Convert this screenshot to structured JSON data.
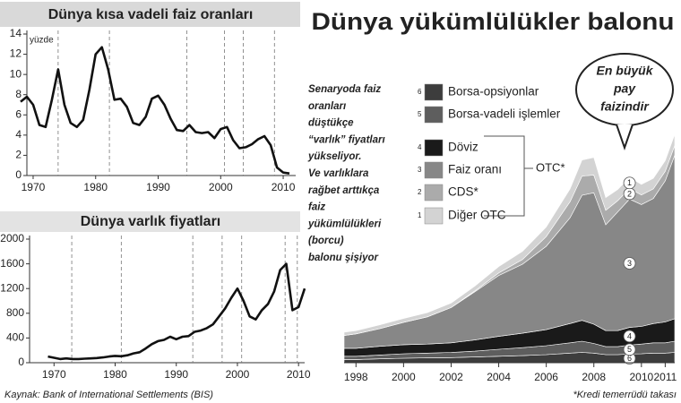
{
  "source": "Kaynak: Bank of International Settlements (BIS)",
  "chart_data": [
    {
      "type": "line",
      "title": "Dünya kısa vadeli faiz oranları",
      "ylabel": "yüzde",
      "x": [
        1968,
        1969,
        1970,
        1971,
        1972,
        1973,
        1974,
        1975,
        1976,
        1977,
        1978,
        1979,
        1980,
        1981,
        1982,
        1983,
        1984,
        1985,
        1986,
        1987,
        1988,
        1989,
        1990,
        1991,
        1992,
        1993,
        1994,
        1995,
        1996,
        1997,
        1998,
        1999,
        2000,
        2001,
        2002,
        2003,
        2004,
        2005,
        2006,
        2007,
        2008,
        2009,
        2010,
        2011
      ],
      "values": [
        7.3,
        7.8,
        7.0,
        5.0,
        4.8,
        7.5,
        10.5,
        7.0,
        5.2,
        4.8,
        5.5,
        8.5,
        12.0,
        12.7,
        10.5,
        7.5,
        7.6,
        6.8,
        5.2,
        5.0,
        5.8,
        7.6,
        7.9,
        7.0,
        5.6,
        4.5,
        4.4,
        5.0,
        4.3,
        4.2,
        4.3,
        3.7,
        4.6,
        4.8,
        3.5,
        2.7,
        2.8,
        3.1,
        3.6,
        3.9,
        3.0,
        0.8,
        0.3,
        0.2
      ],
      "color": "#111111",
      "xlim": [
        1969,
        2012
      ],
      "xticks": [
        1970,
        1980,
        1990,
        2000,
        2010
      ],
      "ylim": [
        0,
        14
      ],
      "yticks": [
        0,
        2,
        4,
        6,
        8,
        10,
        12,
        14
      ],
      "vlines": [
        1974,
        1982.2,
        1994.6,
        2000.6,
        2003.6,
        2008.6
      ]
    },
    {
      "type": "line",
      "title": "Dünya varlık fiyatları",
      "x": [
        1969,
        1970,
        1971,
        1972,
        1973,
        1974,
        1975,
        1976,
        1977,
        1978,
        1979,
        1980,
        1981,
        1982,
        1983,
        1984,
        1985,
        1986,
        1987,
        1988,
        1989,
        1990,
        1991,
        1992,
        1993,
        1994,
        1995,
        1996,
        1997,
        1998,
        1999,
        2000,
        2001,
        2002,
        2003,
        2004,
        2005,
        2006,
        2007,
        2008,
        2009,
        2010,
        2011
      ],
      "values": [
        100,
        80,
        60,
        70,
        60,
        60,
        65,
        70,
        75,
        85,
        100,
        110,
        105,
        120,
        150,
        170,
        230,
        300,
        350,
        370,
        420,
        380,
        420,
        430,
        500,
        520,
        560,
        620,
        750,
        880,
        1050,
        1200,
        1000,
        750,
        700,
        850,
        950,
        1150,
        1500,
        1600,
        850,
        900,
        1200
      ],
      "color": "#111111",
      "xlim": [
        1966,
        2011
      ],
      "xticks": [
        1970,
        1980,
        1990,
        2000,
        2010
      ],
      "ylim": [
        0,
        2000
      ],
      "yticks": [
        0,
        400,
        800,
        1200,
        1600,
        2000
      ],
      "vlines": [
        1972.9,
        1981,
        1992.7,
        1997.5,
        2000.7,
        2007.8,
        2009.8
      ]
    },
    {
      "type": "area",
      "title": "Dünya yükümlülükler balonu",
      "annotation": [
        "Senaryoda faiz",
        "oranları",
        "düştükçe",
        "“varlık” fiyatları",
        "yükseliyor.",
        "Ve varlıklara",
        "rağbet arttıkça",
        "faiz",
        "yükümlülükleri",
        "(borcu)",
        "balonu şişiyor"
      ],
      "callout": [
        "En büyük",
        "pay",
        "faizindir"
      ],
      "group_label": "OTC*",
      "footnote": "*Kredi temerrüdü takası",
      "x": [
        1997.5,
        1998,
        1999,
        2000,
        2001,
        2002,
        2003,
        2004,
        2005,
        2006,
        2007,
        2007.5,
        2008,
        2008.5,
        2009,
        2009.5,
        2010,
        2010.5,
        2011,
        2011.4
      ],
      "xlim": [
        1997.5,
        2011.4
      ],
      "xticks": [
        1998,
        2000,
        2002,
        2004,
        2006,
        2008,
        2010,
        2011
      ],
      "series": [
        {
          "name": "Borsa-opsiyonlar",
          "key": "6",
          "color": "#3d3d3d",
          "values": [
            10,
            10,
            12,
            14,
            15,
            16,
            18,
            20,
            22,
            25,
            30,
            32,
            30,
            25,
            25,
            27,
            28,
            30,
            30,
            32
          ]
        },
        {
          "name": "Borsa-vadeli işlemler",
          "key": "5",
          "color": "#5e5e5e",
          "values": [
            10,
            10,
            12,
            14,
            15,
            16,
            18,
            22,
            25,
            28,
            32,
            35,
            30,
            25,
            25,
            28,
            30,
            32,
            32,
            35
          ]
        },
        {
          "name": "Döviz",
          "key": "4",
          "color": "#1a1a1a",
          "values": [
            25,
            25,
            27,
            28,
            28,
            30,
            35,
            40,
            45,
            50,
            60,
            65,
            60,
            50,
            50,
            55,
            55,
            60,
            65,
            70
          ]
        },
        {
          "name": "Faiz oranı",
          "key": "3",
          "color": "#878787",
          "values": [
            40,
            45,
            55,
            70,
            85,
            110,
            150,
            190,
            215,
            260,
            330,
            390,
            410,
            330,
            370,
            400,
            380,
            390,
            440,
            510
          ]
        },
        {
          "name": "CDS*",
          "key": "2",
          "color": "#ababab",
          "values": [
            0,
            0,
            0,
            0,
            0,
            0,
            3,
            8,
            15,
            30,
            50,
            60,
            55,
            45,
            35,
            33,
            30,
            30,
            30,
            30
          ]
        },
        {
          "name": "Diğer OTC",
          "key": "1",
          "color": "#d3d3d3",
          "values": [
            10,
            10,
            12,
            12,
            13,
            14,
            15,
            20,
            25,
            30,
            40,
            50,
            55,
            40,
            35,
            35,
            33,
            33,
            33,
            35
          ]
        }
      ]
    }
  ]
}
